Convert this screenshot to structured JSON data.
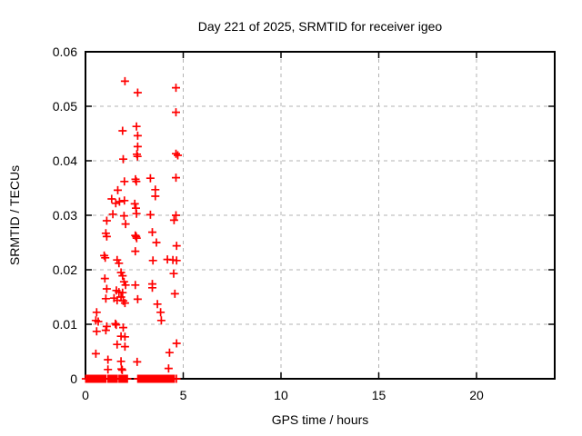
{
  "chart_data": {
    "type": "scatter",
    "title": "Day 221 of 2025, SRMTID for receiver igeo",
    "xlabel": "GPS time / hours",
    "ylabel": "SRMTID / TECUs",
    "xlim": [
      0,
      24
    ],
    "ylim": [
      0,
      0.06
    ],
    "xticks": [
      0,
      5,
      10,
      15,
      20
    ],
    "xtick_labels": [
      "0",
      "5",
      "10",
      "15",
      "20"
    ],
    "yticks": [
      0,
      0.01,
      0.02,
      0.03,
      0.04,
      0.05,
      0.06
    ],
    "ytick_labels": [
      "0",
      "0.01",
      "0.02",
      "0.03",
      "0.04",
      "0.05",
      "0.06"
    ],
    "grid": true,
    "legend": false,
    "marker": "plus",
    "marker_color": "#ff0000",
    "grid_color": "#b3b3b3",
    "border_color": "#000000",
    "points": [
      [
        2.02,
        0.0546
      ],
      [
        2.67,
        0.0525
      ],
      [
        4.63,
        0.0534
      ],
      [
        4.63,
        0.0489
      ],
      [
        1.9,
        0.0455
      ],
      [
        2.61,
        0.0463
      ],
      [
        2.67,
        0.0446
      ],
      [
        2.67,
        0.0426
      ],
      [
        1.93,
        0.0403
      ],
      [
        2.63,
        0.0412
      ],
      [
        2.66,
        0.0408
      ],
      [
        4.63,
        0.0413
      ],
      [
        4.72,
        0.041
      ],
      [
        1.99,
        0.0362
      ],
      [
        2.56,
        0.0366
      ],
      [
        2.6,
        0.0362
      ],
      [
        3.32,
        0.0368
      ],
      [
        4.63,
        0.0369
      ],
      [
        3.57,
        0.0347
      ],
      [
        3.57,
        0.0335
      ],
      [
        1.65,
        0.0346
      ],
      [
        1.34,
        0.033
      ],
      [
        1.74,
        0.0325
      ],
      [
        1.55,
        0.0322
      ],
      [
        1.99,
        0.0327
      ],
      [
        2.52,
        0.0321
      ],
      [
        2.58,
        0.0313
      ],
      [
        1.4,
        0.0302
      ],
      [
        1.97,
        0.0299
      ],
      [
        2.61,
        0.0303
      ],
      [
        3.32,
        0.0301
      ],
      [
        4.63,
        0.03
      ],
      [
        1.09,
        0.029
      ],
      [
        2.05,
        0.0284
      ],
      [
        4.53,
        0.0291
      ],
      [
        1.04,
        0.0267
      ],
      [
        1.09,
        0.0261
      ],
      [
        2.55,
        0.0263
      ],
      [
        2.59,
        0.0261
      ],
      [
        2.62,
        0.0258
      ],
      [
        3.42,
        0.0269
      ],
      [
        3.63,
        0.025
      ],
      [
        4.66,
        0.0244
      ],
      [
        2.55,
        0.0234
      ],
      [
        0.96,
        0.0226
      ],
      [
        1.01,
        0.0222
      ],
      [
        1.62,
        0.0218
      ],
      [
        1.71,
        0.0212
      ],
      [
        3.45,
        0.0217
      ],
      [
        4.19,
        0.0219
      ],
      [
        4.47,
        0.0218
      ],
      [
        4.66,
        0.0217
      ],
      [
        4.51,
        0.0193
      ],
      [
        0.99,
        0.0184
      ],
      [
        1.82,
        0.0195
      ],
      [
        1.9,
        0.0189
      ],
      [
        1.97,
        0.0178
      ],
      [
        2.05,
        0.0172
      ],
      [
        2.55,
        0.0172
      ],
      [
        3.42,
        0.0174
      ],
      [
        3.42,
        0.0167
      ],
      [
        1.09,
        0.0165
      ],
      [
        1.58,
        0.0162
      ],
      [
        1.71,
        0.0159
      ],
      [
        1.9,
        0.0158
      ],
      [
        4.57,
        0.0156
      ],
      [
        1.04,
        0.0147
      ],
      [
        1.46,
        0.0148
      ],
      [
        1.62,
        0.0144
      ],
      [
        1.82,
        0.015
      ],
      [
        1.93,
        0.0143
      ],
      [
        2.67,
        0.0146
      ],
      [
        2.02,
        0.0139
      ],
      [
        3.68,
        0.0137
      ],
      [
        3.84,
        0.0122
      ],
      [
        3.88,
        0.0107
      ],
      [
        0.57,
        0.0122
      ],
      [
        0.53,
        0.0107
      ],
      [
        0.65,
        0.0105
      ],
      [
        1.09,
        0.0096
      ],
      [
        0.57,
        0.0087
      ],
      [
        1.04,
        0.0089
      ],
      [
        1.53,
        0.0101
      ],
      [
        1.57,
        0.0099
      ],
      [
        1.93,
        0.0094
      ],
      [
        1.82,
        0.0078
      ],
      [
        2.02,
        0.0077
      ],
      [
        1.62,
        0.0063
      ],
      [
        2.02,
        0.0059
      ],
      [
        4.66,
        0.0065
      ],
      [
        4.3,
        0.0048
      ],
      [
        0.53,
        0.0046
      ],
      [
        1.15,
        0.0035
      ],
      [
        1.82,
        0.0032
      ],
      [
        2.64,
        0.0031
      ],
      [
        1.15,
        0.0017
      ],
      [
        1.84,
        0.0018
      ],
      [
        1.88,
        0.0016
      ],
      [
        4.25,
        0.0019
      ]
    ],
    "points_at_zero_x": [
      0.02,
      0.08,
      0.14,
      0.2,
      0.26,
      0.32,
      0.38,
      0.44,
      0.5,
      0.56,
      0.62,
      0.68,
      0.74,
      0.8,
      0.86,
      0.92,
      0.98,
      1.04,
      1.16,
      1.22,
      1.28,
      1.34,
      1.4,
      1.46,
      1.52,
      1.58,
      1.62,
      1.72,
      1.78,
      1.84,
      1.9,
      1.96,
      2.02,
      2.08,
      2.14,
      2.68,
      2.74,
      2.8,
      2.86,
      2.93,
      2.99,
      3.05,
      3.11,
      3.17,
      3.23,
      3.3,
      3.36,
      3.42,
      3.48,
      3.54,
      3.6,
      3.67,
      3.73,
      3.79,
      3.85,
      3.91,
      3.97,
      4.04,
      4.1,
      4.16,
      4.22,
      4.28,
      4.34,
      4.41,
      4.47,
      4.54,
      4.65
    ]
  }
}
